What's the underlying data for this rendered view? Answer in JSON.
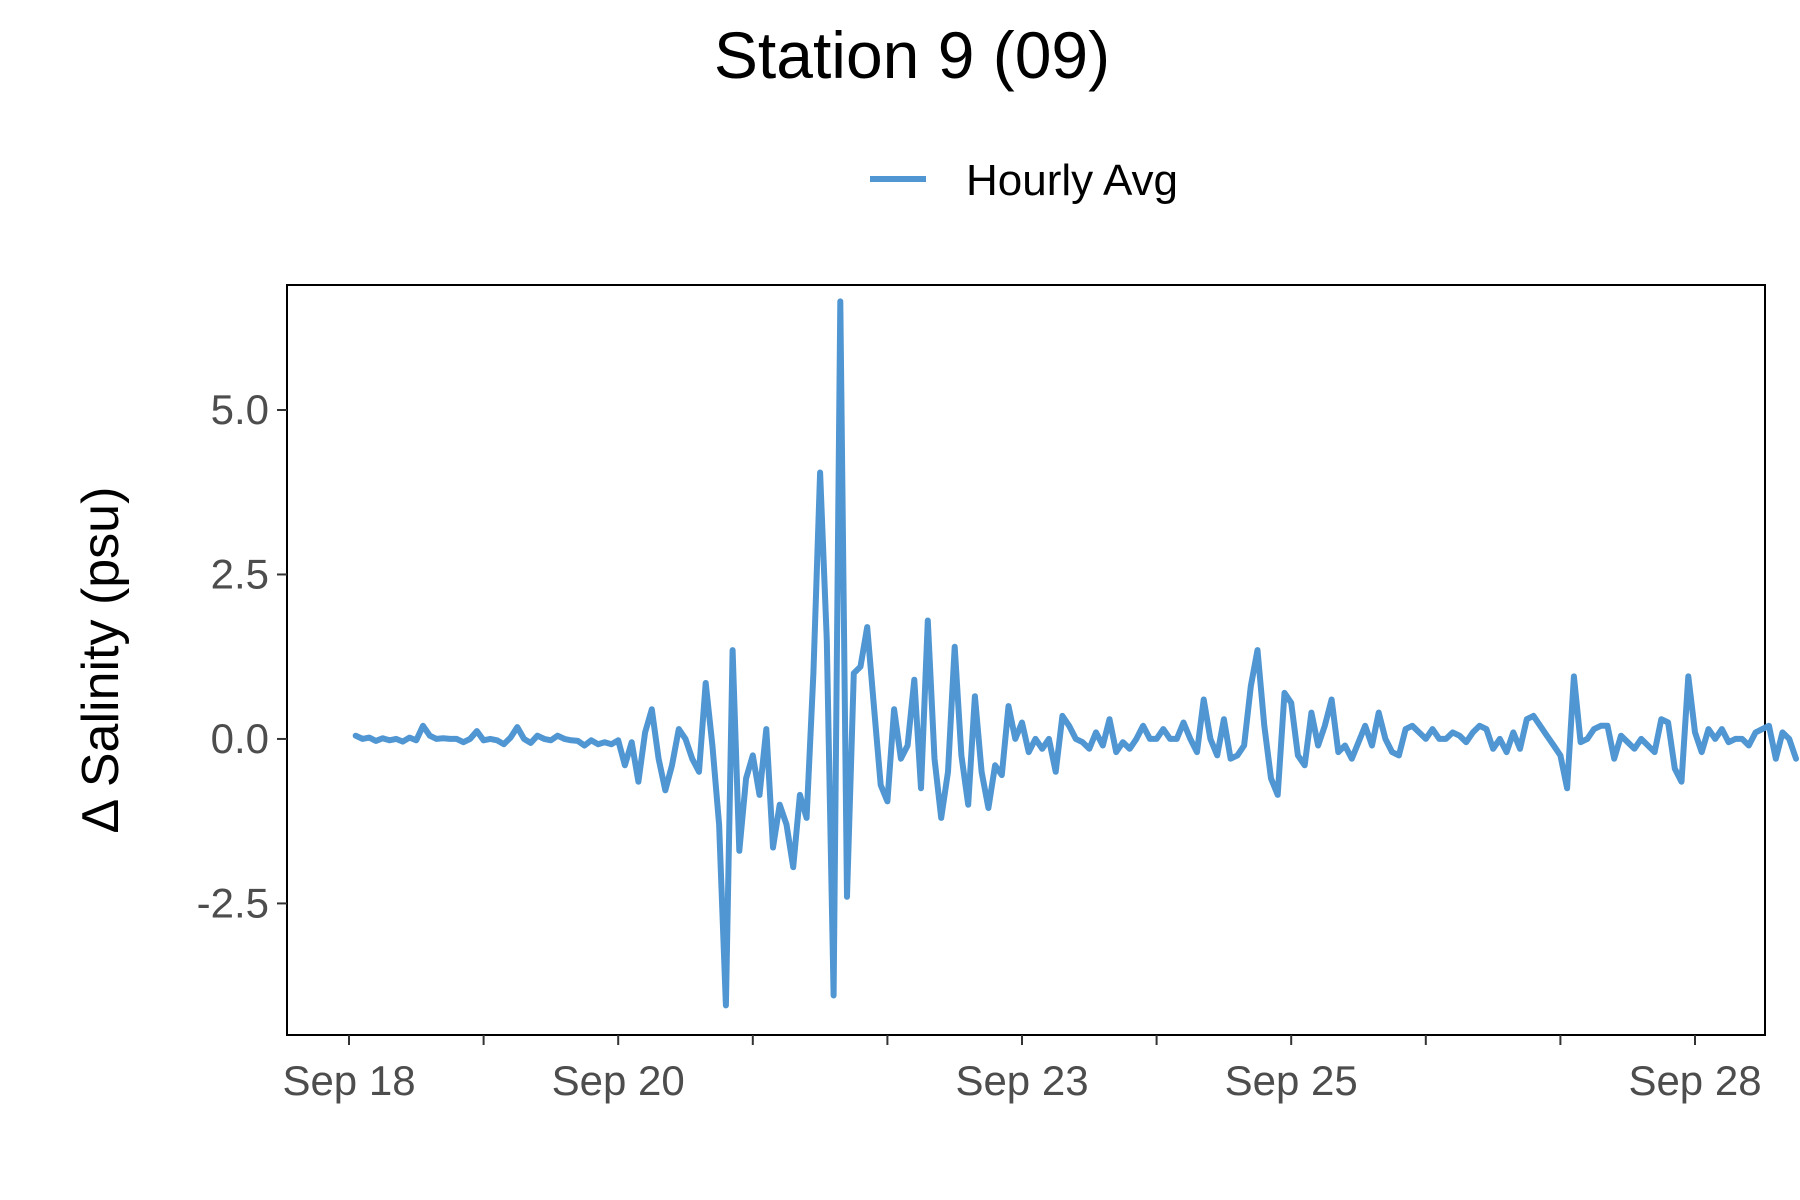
{
  "chart_data": {
    "type": "line",
    "title": "Station 9 (09)",
    "xlabel": "",
    "ylabel": "Δ Salinity (psu)",
    "legend": {
      "position": "top",
      "entries": [
        "Hourly Avg"
      ]
    },
    "grid": false,
    "x_unit": "date (September)",
    "xlim": [
      "Sep 18",
      "Sep 28"
    ],
    "ylim": [
      -4.5,
      6.9
    ],
    "x_ticks": [
      {
        "value": 18,
        "label": "Sep 18"
      },
      {
        "value": 19,
        "label": ""
      },
      {
        "value": 20,
        "label": "Sep 20"
      },
      {
        "value": 21,
        "label": ""
      },
      {
        "value": 22,
        "label": ""
      },
      {
        "value": 23,
        "label": "Sep 23"
      },
      {
        "value": 24,
        "label": ""
      },
      {
        "value": 25,
        "label": "Sep 25"
      },
      {
        "value": 26,
        "label": ""
      },
      {
        "value": 27,
        "label": ""
      },
      {
        "value": 28,
        "label": "Sep 28"
      }
    ],
    "y_ticks": [
      {
        "value": 5.0,
        "label": "5.0"
      },
      {
        "value": 2.5,
        "label": "2.5"
      },
      {
        "value": 0.0,
        "label": "0.0"
      },
      {
        "value": -2.5,
        "label": "-2.5"
      }
    ],
    "series": [
      {
        "name": "Hourly Avg",
        "color": "#5096d2",
        "points": [
          [
            18.05,
            0.05
          ],
          [
            18.1,
            0.0
          ],
          [
            18.15,
            0.02
          ],
          [
            18.2,
            -0.03
          ],
          [
            18.25,
            0.01
          ],
          [
            18.3,
            -0.02
          ],
          [
            18.35,
            0.0
          ],
          [
            18.4,
            -0.04
          ],
          [
            18.45,
            0.02
          ],
          [
            18.5,
            -0.02
          ],
          [
            18.55,
            0.2
          ],
          [
            18.6,
            0.05
          ],
          [
            18.65,
            0.0
          ],
          [
            18.7,
            0.01
          ],
          [
            18.75,
            0.0
          ],
          [
            18.8,
            0.0
          ],
          [
            18.85,
            -0.05
          ],
          [
            18.9,
            0.0
          ],
          [
            18.95,
            0.12
          ],
          [
            19.0,
            -0.02
          ],
          [
            19.05,
            0.0
          ],
          [
            19.1,
            -0.02
          ],
          [
            19.15,
            -0.08
          ],
          [
            19.2,
            0.02
          ],
          [
            19.25,
            0.18
          ],
          [
            19.3,
            0.0
          ],
          [
            19.35,
            -0.06
          ],
          [
            19.4,
            0.05
          ],
          [
            19.45,
            0.0
          ],
          [
            19.5,
            -0.02
          ],
          [
            19.55,
            0.05
          ],
          [
            19.6,
            0.0
          ],
          [
            19.65,
            -0.02
          ],
          [
            19.7,
            -0.03
          ],
          [
            19.75,
            -0.1
          ],
          [
            19.8,
            -0.02
          ],
          [
            19.85,
            -0.08
          ],
          [
            19.9,
            -0.05
          ],
          [
            19.95,
            -0.08
          ],
          [
            20.0,
            -0.02
          ],
          [
            20.05,
            -0.4
          ],
          [
            20.1,
            -0.05
          ],
          [
            20.15,
            -0.65
          ],
          [
            20.2,
            0.1
          ],
          [
            20.25,
            0.45
          ],
          [
            20.3,
            -0.3
          ],
          [
            20.35,
            -0.78
          ],
          [
            20.4,
            -0.4
          ],
          [
            20.45,
            0.15
          ],
          [
            20.5,
            0.0
          ],
          [
            20.55,
            -0.3
          ],
          [
            20.6,
            -0.5
          ],
          [
            20.65,
            0.85
          ],
          [
            20.7,
            -0.1
          ],
          [
            20.75,
            -1.3
          ],
          [
            20.8,
            -4.05
          ],
          [
            20.85,
            1.35
          ],
          [
            20.9,
            -1.7
          ],
          [
            20.95,
            -0.6
          ],
          [
            21.0,
            -0.25
          ],
          [
            21.05,
            -0.85
          ],
          [
            21.1,
            0.15
          ],
          [
            21.15,
            -1.65
          ],
          [
            21.2,
            -1.0
          ],
          [
            21.25,
            -1.3
          ],
          [
            21.3,
            -1.95
          ],
          [
            21.35,
            -0.85
          ],
          [
            21.4,
            -1.2
          ],
          [
            21.45,
            1.0
          ],
          [
            21.5,
            4.05
          ],
          [
            21.55,
            1.5
          ],
          [
            21.6,
            -3.9
          ],
          [
            21.65,
            6.65
          ],
          [
            21.7,
            -2.4
          ],
          [
            21.75,
            1.0
          ],
          [
            21.8,
            1.1
          ],
          [
            21.85,
            1.7
          ],
          [
            21.9,
            0.5
          ],
          [
            21.95,
            -0.7
          ],
          [
            22.0,
            -0.95
          ],
          [
            22.05,
            0.45
          ],
          [
            22.1,
            -0.3
          ],
          [
            22.15,
            -0.1
          ],
          [
            22.2,
            0.9
          ],
          [
            22.25,
            -0.75
          ],
          [
            22.3,
            1.8
          ],
          [
            22.35,
            -0.3
          ],
          [
            22.4,
            -1.2
          ],
          [
            22.45,
            -0.5
          ],
          [
            22.5,
            1.4
          ],
          [
            22.55,
            -0.25
          ],
          [
            22.6,
            -1.0
          ],
          [
            22.65,
            0.65
          ],
          [
            22.7,
            -0.5
          ],
          [
            22.75,
            -1.05
          ],
          [
            22.8,
            -0.4
          ],
          [
            22.85,
            -0.55
          ],
          [
            22.9,
            0.5
          ],
          [
            22.95,
            0.0
          ],
          [
            23.0,
            0.25
          ],
          [
            23.05,
            -0.2
          ],
          [
            23.1,
            0.0
          ],
          [
            23.15,
            -0.15
          ],
          [
            23.2,
            0.0
          ],
          [
            23.25,
            -0.5
          ],
          [
            23.3,
            0.35
          ],
          [
            23.35,
            0.2
          ],
          [
            23.4,
            0.0
          ],
          [
            23.45,
            -0.05
          ],
          [
            23.5,
            -0.15
          ],
          [
            23.55,
            0.1
          ],
          [
            23.6,
            -0.1
          ],
          [
            23.65,
            0.3
          ],
          [
            23.7,
            -0.2
          ],
          [
            23.75,
            -0.05
          ],
          [
            23.8,
            -0.15
          ],
          [
            23.85,
            0.0
          ],
          [
            23.9,
            0.2
          ],
          [
            23.95,
            0.0
          ],
          [
            24.0,
            0.0
          ],
          [
            24.05,
            0.15
          ],
          [
            24.1,
            0.0
          ],
          [
            24.15,
            0.0
          ],
          [
            24.2,
            0.25
          ],
          [
            24.25,
            0.0
          ],
          [
            24.3,
            -0.2
          ],
          [
            24.35,
            0.6
          ],
          [
            24.4,
            0.0
          ],
          [
            24.45,
            -0.25
          ],
          [
            24.5,
            0.3
          ],
          [
            24.55,
            -0.3
          ],
          [
            24.6,
            -0.25
          ],
          [
            24.65,
            -0.1
          ],
          [
            24.7,
            0.8
          ],
          [
            24.75,
            1.35
          ],
          [
            24.8,
            0.2
          ],
          [
            24.85,
            -0.6
          ],
          [
            24.9,
            -0.85
          ],
          [
            24.95,
            0.7
          ],
          [
            25.0,
            0.55
          ],
          [
            25.05,
            -0.25
          ],
          [
            25.1,
            -0.4
          ],
          [
            25.15,
            0.4
          ],
          [
            25.2,
            -0.1
          ],
          [
            25.25,
            0.2
          ],
          [
            25.3,
            0.6
          ],
          [
            25.35,
            -0.2
          ],
          [
            25.4,
            -0.1
          ],
          [
            25.45,
            -0.3
          ],
          [
            25.5,
            -0.05
          ],
          [
            25.55,
            0.2
          ],
          [
            25.6,
            -0.1
          ],
          [
            25.65,
            0.4
          ],
          [
            25.7,
            0.0
          ],
          [
            25.75,
            -0.2
          ],
          [
            25.8,
            -0.25
          ],
          [
            25.85,
            0.15
          ],
          [
            25.9,
            0.2
          ],
          [
            25.95,
            0.1
          ],
          [
            26.0,
            0.0
          ],
          [
            26.05,
            0.15
          ],
          [
            26.1,
            0.0
          ],
          [
            26.15,
            0.0
          ],
          [
            26.2,
            0.1
          ],
          [
            26.25,
            0.05
          ],
          [
            26.3,
            -0.05
          ],
          [
            26.35,
            0.1
          ],
          [
            26.4,
            0.2
          ],
          [
            26.45,
            0.15
          ],
          [
            26.5,
            -0.15
          ],
          [
            26.55,
            0.0
          ],
          [
            26.6,
            -0.2
          ],
          [
            26.65,
            0.1
          ],
          [
            26.7,
            -0.15
          ],
          [
            26.75,
            0.3
          ],
          [
            26.8,
            0.35
          ],
          [
            26.85,
            0.2
          ],
          [
            26.9,
            0.05
          ],
          [
            26.95,
            -0.1
          ],
          [
            27.0,
            -0.25
          ],
          [
            27.05,
            -0.75
          ],
          [
            27.1,
            0.95
          ],
          [
            27.15,
            -0.05
          ],
          [
            27.2,
            0.0
          ],
          [
            27.25,
            0.15
          ],
          [
            27.3,
            0.2
          ],
          [
            27.35,
            0.2
          ],
          [
            27.4,
            -0.3
          ],
          [
            27.45,
            0.05
          ],
          [
            27.5,
            -0.05
          ],
          [
            27.55,
            -0.15
          ],
          [
            27.6,
            0.0
          ],
          [
            27.65,
            -0.1
          ],
          [
            27.7,
            -0.2
          ],
          [
            27.75,
            0.3
          ],
          [
            27.8,
            0.25
          ],
          [
            27.85,
            -0.45
          ],
          [
            27.9,
            -0.65
          ],
          [
            27.95,
            0.95
          ],
          [
            28.0,
            0.1
          ],
          [
            28.05,
            -0.2
          ],
          [
            28.1,
            0.15
          ],
          [
            28.15,
            0.0
          ],
          [
            28.2,
            0.15
          ],
          [
            28.25,
            -0.05
          ],
          [
            28.3,
            0.0
          ],
          [
            28.35,
            0.0
          ],
          [
            28.4,
            -0.1
          ],
          [
            28.45,
            0.1
          ],
          [
            28.5,
            0.15
          ],
          [
            28.55,
            0.2
          ],
          [
            28.6,
            -0.3
          ],
          [
            28.65,
            0.1
          ],
          [
            28.7,
            0.0
          ],
          [
            28.75,
            -0.3
          ]
        ]
      }
    ]
  }
}
